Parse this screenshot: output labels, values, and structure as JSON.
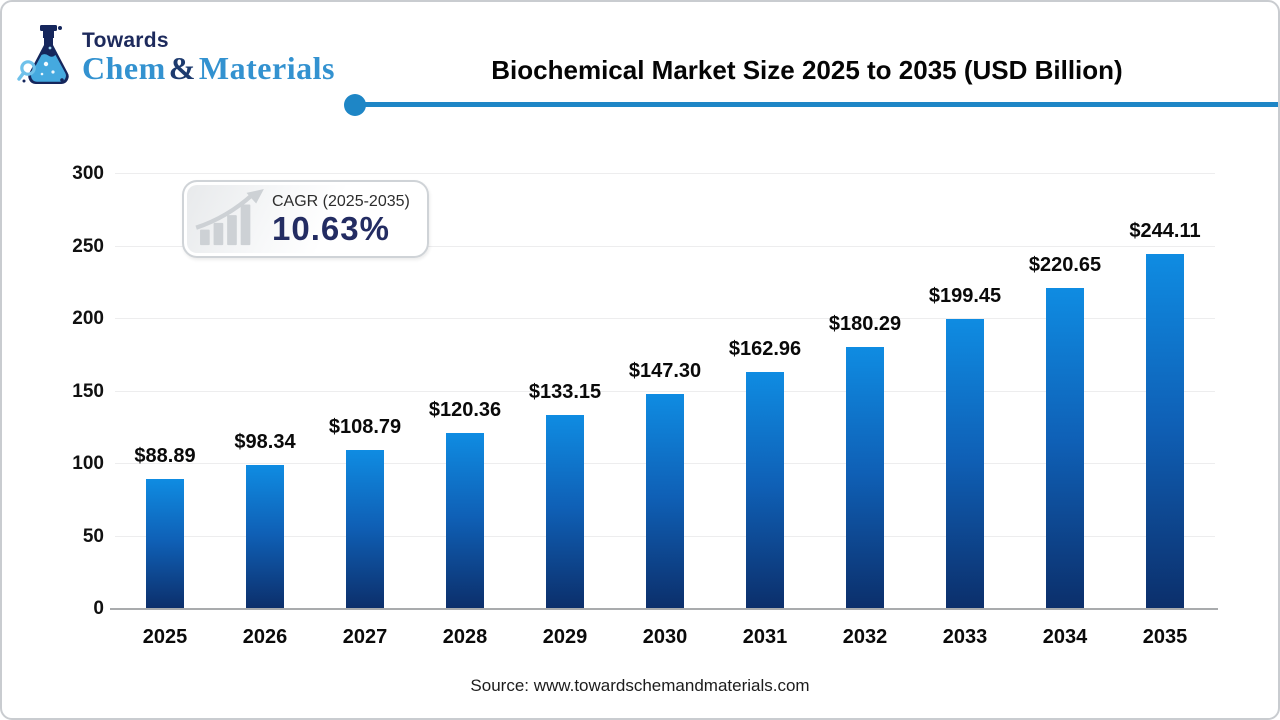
{
  "logo": {
    "towards": "Towards",
    "chem": "Chem",
    "ampersand": "&",
    "materials": "Materials"
  },
  "header": {
    "title": "Biochemical Market Size 2025 to 2035 (USD Billion)"
  },
  "cagr_badge": {
    "label": "CAGR (2025-2035)",
    "value": "10.63%"
  },
  "chart_data": {
    "type": "bar",
    "title": "Biochemical Market Size 2025 to 2035 (USD Billion)",
    "xlabel": "",
    "ylabel": "",
    "categories": [
      "2025",
      "2026",
      "2027",
      "2028",
      "2029",
      "2030",
      "2031",
      "2032",
      "2033",
      "2034",
      "2035"
    ],
    "values": [
      88.89,
      98.34,
      108.79,
      120.36,
      133.15,
      147.3,
      162.96,
      180.29,
      199.45,
      220.65,
      244.11
    ],
    "value_labels": [
      "$88.89",
      "$98.34",
      "$108.79",
      "$120.36",
      "$133.15",
      "$147.30",
      "$162.96",
      "$180.29",
      "$199.45",
      "$220.65",
      "$244.11"
    ],
    "ylim": [
      0,
      300
    ],
    "yticks": [
      0,
      50,
      100,
      150,
      200,
      250,
      300
    ],
    "grid": true,
    "legend": "none"
  },
  "footer": {
    "source": "Source: www.towardschemandmaterials.com"
  },
  "colors": {
    "bar_top": "#0f8ce2",
    "bar_mid": "#0f60b6",
    "bar_bottom": "#0c2f6b",
    "accent_line": "#1e86c6",
    "navy_text": "#232c62",
    "logo_blue": "#3392d0",
    "logo_navy": "#1d2a5c",
    "gridline": "#ededee",
    "axis_line": "#a9abad"
  }
}
